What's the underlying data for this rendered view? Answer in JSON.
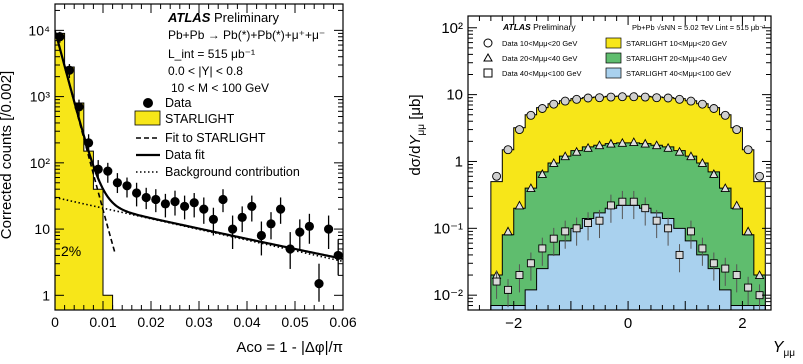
{
  "chart_data": [
    {
      "type": "scatter",
      "xlabel": "Aco = 1 - |Δφ|/π",
      "ylabel": "Corrected counts [/0.002]",
      "xlim": [
        0,
        0.06
      ],
      "ylim": [
        0.6,
        25000
      ],
      "yscale": "log",
      "x_ticks": [
        "0",
        "0.01",
        "0.02",
        "0.03",
        "0.04",
        "0.05",
        "0.06"
      ],
      "y_ticks": [
        "1",
        "10",
        "10²",
        "10³",
        "10⁴"
      ],
      "header": [
        "ATLAS Preliminary",
        "Pb+Pb → Pb(*)+Pb(*)+μ⁺+μ⁻",
        "L_int = 515 μb⁻¹",
        "0.0 < |Y| < 0.8",
        "10 < M < 100 GeV"
      ],
      "legend": [
        "Data",
        "STARLIGHT",
        "Fit to STARLIGHT",
        "Data fit",
        "Background contribution"
      ],
      "annotation": "2%",
      "fill_color": "#f7e619",
      "data": [
        {
          "x": 0.001,
          "y": 8000,
          "yerr": [
            6500,
            9500
          ]
        },
        {
          "x": 0.003,
          "y": 2500,
          "yerr": [
            1900,
            3100
          ]
        },
        {
          "x": 0.005,
          "y": 700,
          "yerr": [
            500,
            900
          ]
        },
        {
          "x": 0.007,
          "y": 200,
          "yerr": [
            140,
            270
          ]
        },
        {
          "x": 0.009,
          "y": 80,
          "yerr": [
            55,
            110
          ]
        },
        {
          "x": 0.011,
          "y": 75,
          "yerr": [
            50,
            100
          ]
        },
        {
          "x": 0.013,
          "y": 50,
          "yerr": [
            35,
            70
          ]
        },
        {
          "x": 0.015,
          "y": 45,
          "yerr": [
            30,
            60
          ]
        },
        {
          "x": 0.017,
          "y": 35,
          "yerr": [
            22,
            50
          ]
        },
        {
          "x": 0.019,
          "y": 30,
          "yerr": [
            20,
            42
          ]
        },
        {
          "x": 0.021,
          "y": 28,
          "yerr": [
            18,
            40
          ]
        },
        {
          "x": 0.023,
          "y": 24,
          "yerr": [
            15,
            34
          ]
        },
        {
          "x": 0.025,
          "y": 26,
          "yerr": [
            16,
            38
          ]
        },
        {
          "x": 0.027,
          "y": 22,
          "yerr": [
            14,
            32
          ]
        },
        {
          "x": 0.029,
          "y": 25,
          "yerr": [
            15,
            35
          ]
        },
        {
          "x": 0.031,
          "y": 20,
          "yerr": [
            12,
            30
          ]
        },
        {
          "x": 0.033,
          "y": 14,
          "yerr": [
            8,
            21
          ]
        },
        {
          "x": 0.035,
          "y": 28,
          "yerr": [
            18,
            40
          ]
        },
        {
          "x": 0.037,
          "y": 10,
          "yerr": [
            5,
            16
          ]
        },
        {
          "x": 0.039,
          "y": 15,
          "yerr": [
            9,
            22
          ]
        },
        {
          "x": 0.041,
          "y": 22,
          "yerr": [
            13,
            32
          ]
        },
        {
          "x": 0.043,
          "y": 8,
          "yerr": [
            4,
            13
          ]
        },
        {
          "x": 0.045,
          "y": 12,
          "yerr": [
            7,
            18
          ]
        },
        {
          "x": 0.047,
          "y": 20,
          "yerr": [
            12,
            30
          ]
        },
        {
          "x": 0.049,
          "y": 5,
          "yerr": [
            2.5,
            9
          ]
        },
        {
          "x": 0.051,
          "y": 9,
          "yerr": [
            5,
            14
          ]
        },
        {
          "x": 0.053,
          "y": 11,
          "yerr": [
            6,
            17
          ]
        },
        {
          "x": 0.055,
          "y": 1.5,
          "yerr": [
            0.8,
            3
          ]
        },
        {
          "x": 0.057,
          "y": 10,
          "yerr": [
            5,
            16
          ]
        },
        {
          "x": 0.059,
          "y": 4,
          "yerr": [
            2,
            7
          ]
        }
      ],
      "starlight_hist": {
        "edges": [
          0,
          0.002,
          0.004,
          0.006,
          0.008,
          0.01,
          0.012
        ],
        "values": [
          9000,
          2800,
          800,
          150,
          40,
          1
        ]
      }
    },
    {
      "type": "scatter",
      "xlabel": "Y_μμ",
      "ylabel": "dσ/dY_μμ [μb]",
      "xlim": [
        -2.8,
        2.5
      ],
      "ylim": [
        0.006,
        150
      ],
      "yscale": "log",
      "x_ticks": [
        "−2",
        "0",
        "2"
      ],
      "y_ticks": [
        "10⁻²",
        "10⁻¹",
        "1",
        "10",
        "10²"
      ],
      "header": "ATLAS Preliminary",
      "header_right": "Pb+Pb √sNN = 5.02 TeV  Lint = 515 μb⁻¹",
      "legend": [
        {
          "marker": "circle",
          "label": "Data 10<Mμμ<20 GeV"
        },
        {
          "marker": "triangle",
          "label": "Data 20<Mμμ<40 GeV"
        },
        {
          "marker": "square",
          "label": "Data 40<Mμμ<100 GeV"
        },
        {
          "color": "#f7e619",
          "label": "STARLIGHT 10<Mμμ<20 GeV"
        },
        {
          "color": "#5fbd6e",
          "label": "STARLIGHT 20<Mμμ<40 GeV"
        },
        {
          "color": "#a9d1ee",
          "label": "STARLIGHT 40<Mμμ<100 GeV"
        }
      ],
      "bin_edges": [
        -2.4,
        -2.2,
        -2.0,
        -1.8,
        -1.6,
        -1.4,
        -1.2,
        -1.0,
        -0.8,
        -0.6,
        -0.4,
        -0.2,
        0.0,
        0.2,
        0.4,
        0.6,
        0.8,
        1.0,
        1.2,
        1.4,
        1.6,
        1.8,
        2.0,
        2.2,
        2.4
      ],
      "starlight": [
        {
          "name": "STARLIGHT 10<Mμμ<20 GeV",
          "color": "#f7e619",
          "values": [
            0.5,
            1.5,
            3.2,
            5.0,
            6.4,
            7.3,
            8.1,
            8.7,
            9.0,
            9.2,
            9.4,
            9.5,
            9.5,
            9.4,
            9.2,
            9.0,
            8.7,
            8.1,
            7.3,
            6.4,
            5.0,
            3.2,
            1.5,
            0.5
          ]
        },
        {
          "name": "STARLIGHT 20<Mμμ<40 GeV",
          "color": "#5fbd6e",
          "values": [
            0.02,
            0.08,
            0.2,
            0.4,
            0.7,
            0.95,
            1.2,
            1.45,
            1.65,
            1.75,
            1.85,
            1.9,
            1.9,
            1.85,
            1.75,
            1.65,
            1.45,
            1.2,
            0.95,
            0.7,
            0.4,
            0.2,
            0.08,
            0.02
          ]
        },
        {
          "name": "STARLIGHT 40<Mμμ<100 GeV",
          "color": "#a9d1ee",
          "values": [
            0.007,
            0.007,
            0.007,
            0.012,
            0.025,
            0.04,
            0.065,
            0.1,
            0.14,
            0.17,
            0.2,
            0.22,
            0.22,
            0.2,
            0.17,
            0.14,
            0.1,
            0.065,
            0.04,
            0.025,
            0.012,
            0.007,
            0.007,
            0.007
          ]
        }
      ],
      "series": [
        {
          "name": "Data 10<Mμμ<20 GeV",
          "marker": "circle",
          "x": [
            -2.3,
            -2.1,
            -1.9,
            -1.7,
            -1.5,
            -1.3,
            -1.1,
            -0.9,
            -0.7,
            -0.5,
            -0.3,
            -0.1,
            0.1,
            0.3,
            0.5,
            0.7,
            0.9,
            1.1,
            1.3,
            1.5,
            1.7,
            1.9,
            2.1,
            2.3
          ],
          "values": [
            0.6,
            1.5,
            3.0,
            4.9,
            6.2,
            7.2,
            8.0,
            8.5,
            8.9,
            9.0,
            9.2,
            9.3,
            9.3,
            9.2,
            9.0,
            8.9,
            8.5,
            8.0,
            7.2,
            6.2,
            4.9,
            3.0,
            1.5,
            0.6
          ]
        },
        {
          "name": "Data 20<Mμμ<40 GeV",
          "marker": "triangle",
          "x": [
            -2.3,
            -2.1,
            -1.9,
            -1.7,
            -1.5,
            -1.3,
            -1.1,
            -0.9,
            -0.7,
            -0.5,
            -0.3,
            -0.1,
            0.1,
            0.3,
            0.5,
            0.7,
            0.9,
            1.1,
            1.3,
            1.5,
            1.7,
            1.9,
            2.1,
            2.3
          ],
          "values": [
            0.02,
            0.09,
            0.22,
            0.4,
            0.65,
            0.95,
            1.2,
            1.4,
            1.6,
            1.75,
            1.85,
            1.9,
            1.95,
            1.85,
            1.75,
            1.6,
            1.4,
            1.2,
            0.95,
            0.65,
            0.4,
            0.22,
            0.09,
            0.02
          ]
        },
        {
          "name": "Data 40<Mμμ<100 GeV",
          "marker": "square",
          "x": [
            -2.3,
            -2.1,
            -1.9,
            -1.7,
            -1.5,
            -1.3,
            -1.1,
            -0.9,
            -0.7,
            -0.5,
            -0.3,
            -0.1,
            0.1,
            0.3,
            0.5,
            0.7,
            0.9,
            1.1,
            1.3,
            1.5,
            1.7,
            1.9,
            2.1,
            2.3
          ],
          "values": [
            0.016,
            0.012,
            0.02,
            0.03,
            0.05,
            0.07,
            0.09,
            0.1,
            0.12,
            0.13,
            0.22,
            0.25,
            0.25,
            0.2,
            0.13,
            0.1,
            0.04,
            0.09,
            0.05,
            0.03,
            0.025,
            0.02,
            0.013,
            0.01
          ]
        }
      ]
    }
  ]
}
